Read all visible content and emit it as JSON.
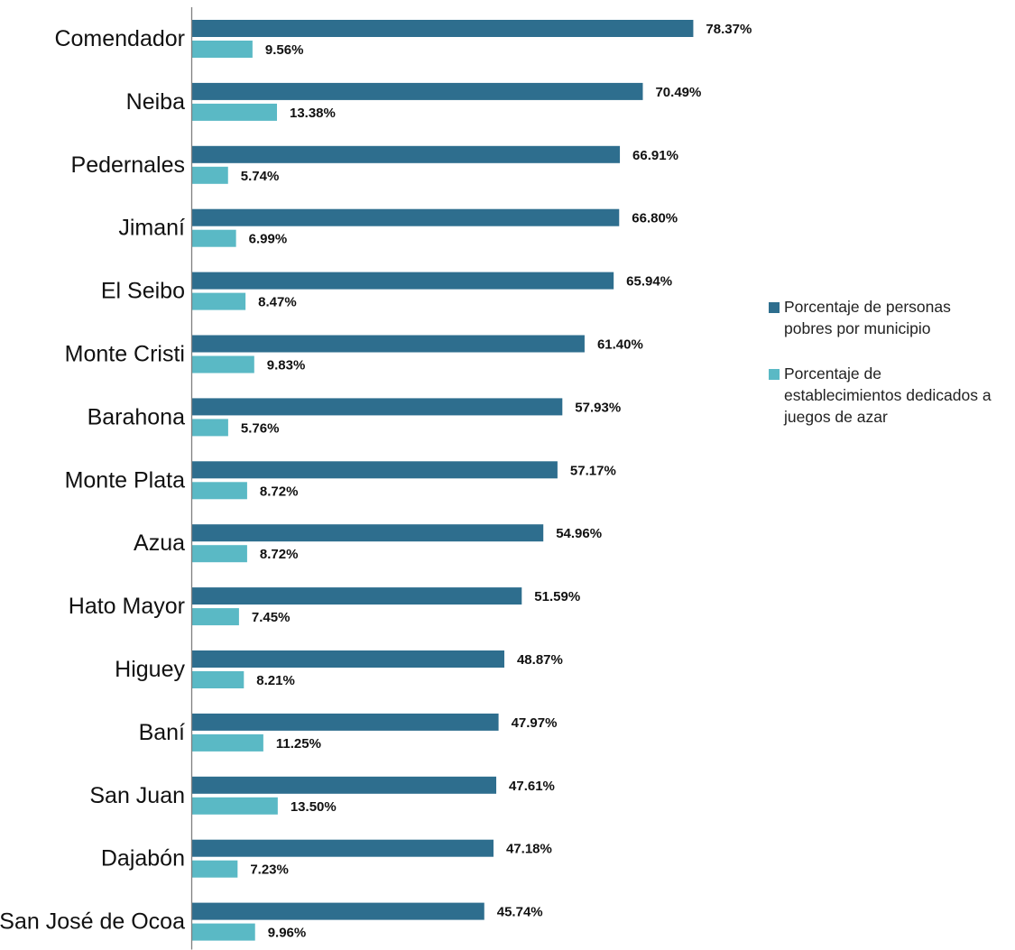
{
  "colors": {
    "poverty": "#2e6e8e",
    "gambling": "#5ab9c5",
    "axis": "#7f7f7f"
  },
  "chart_data": {
    "type": "bar",
    "orientation": "horizontal",
    "title": "",
    "xlabel": "",
    "ylabel": "",
    "xlim": [
      0,
      100
    ],
    "grid": false,
    "legend_position": "right",
    "value_format": "percent-2-decimals",
    "categories": [
      "Comendador",
      "Neiba",
      "Pedernales",
      "Jimaní",
      "El Seibo",
      "Monte Cristi",
      "Barahona",
      "Monte Plata",
      "Azua",
      "Hato Mayor",
      "Higuey",
      "Baní",
      "San Juan",
      "Dajabón",
      "San José de Ocoa"
    ],
    "series": [
      {
        "name": "Porcentaje de personas pobres por municipio",
        "color": "#2e6e8e",
        "values": [
          78.37,
          70.49,
          66.91,
          66.8,
          65.94,
          61.4,
          57.93,
          57.17,
          54.96,
          51.59,
          48.87,
          47.97,
          47.61,
          47.18,
          45.74
        ],
        "labels": [
          "78.37%",
          "70.49%",
          "66.91%",
          "66.80%",
          "65.94%",
          "61.40%",
          "57.93%",
          "57.17%",
          "54.96%",
          "51.59%",
          "48.87%",
          "47.97%",
          "47.61%",
          "47.18%",
          "45.74%"
        ]
      },
      {
        "name": "Porcentaje de establecimientos dedicados a juegos de azar",
        "color": "#5ab9c5",
        "values": [
          9.56,
          13.38,
          5.74,
          6.99,
          8.47,
          9.83,
          5.76,
          8.72,
          8.72,
          7.45,
          8.21,
          11.25,
          13.5,
          7.23,
          9.96
        ],
        "labels": [
          "9.56%",
          "13.38%",
          "5.74%",
          "6.99%",
          "8.47%",
          "9.83%",
          "5.76%",
          "8.72%",
          "8.72%",
          "7.45%",
          "8.21%",
          "11.25%",
          "13.50%",
          "7.23%",
          "9.96%"
        ]
      }
    ]
  },
  "legend": {
    "items": [
      {
        "text_lines": [
          "Porcentaje de personas",
          "pobres por municipio"
        ],
        "color": "#2e6e8e",
        "icon": "square-swatch"
      },
      {
        "text_lines": [
          "Porcentaje de",
          "establecimientos dedicados a",
          "juegos de azar"
        ],
        "color": "#5ab9c5",
        "icon": "square-swatch"
      }
    ]
  }
}
